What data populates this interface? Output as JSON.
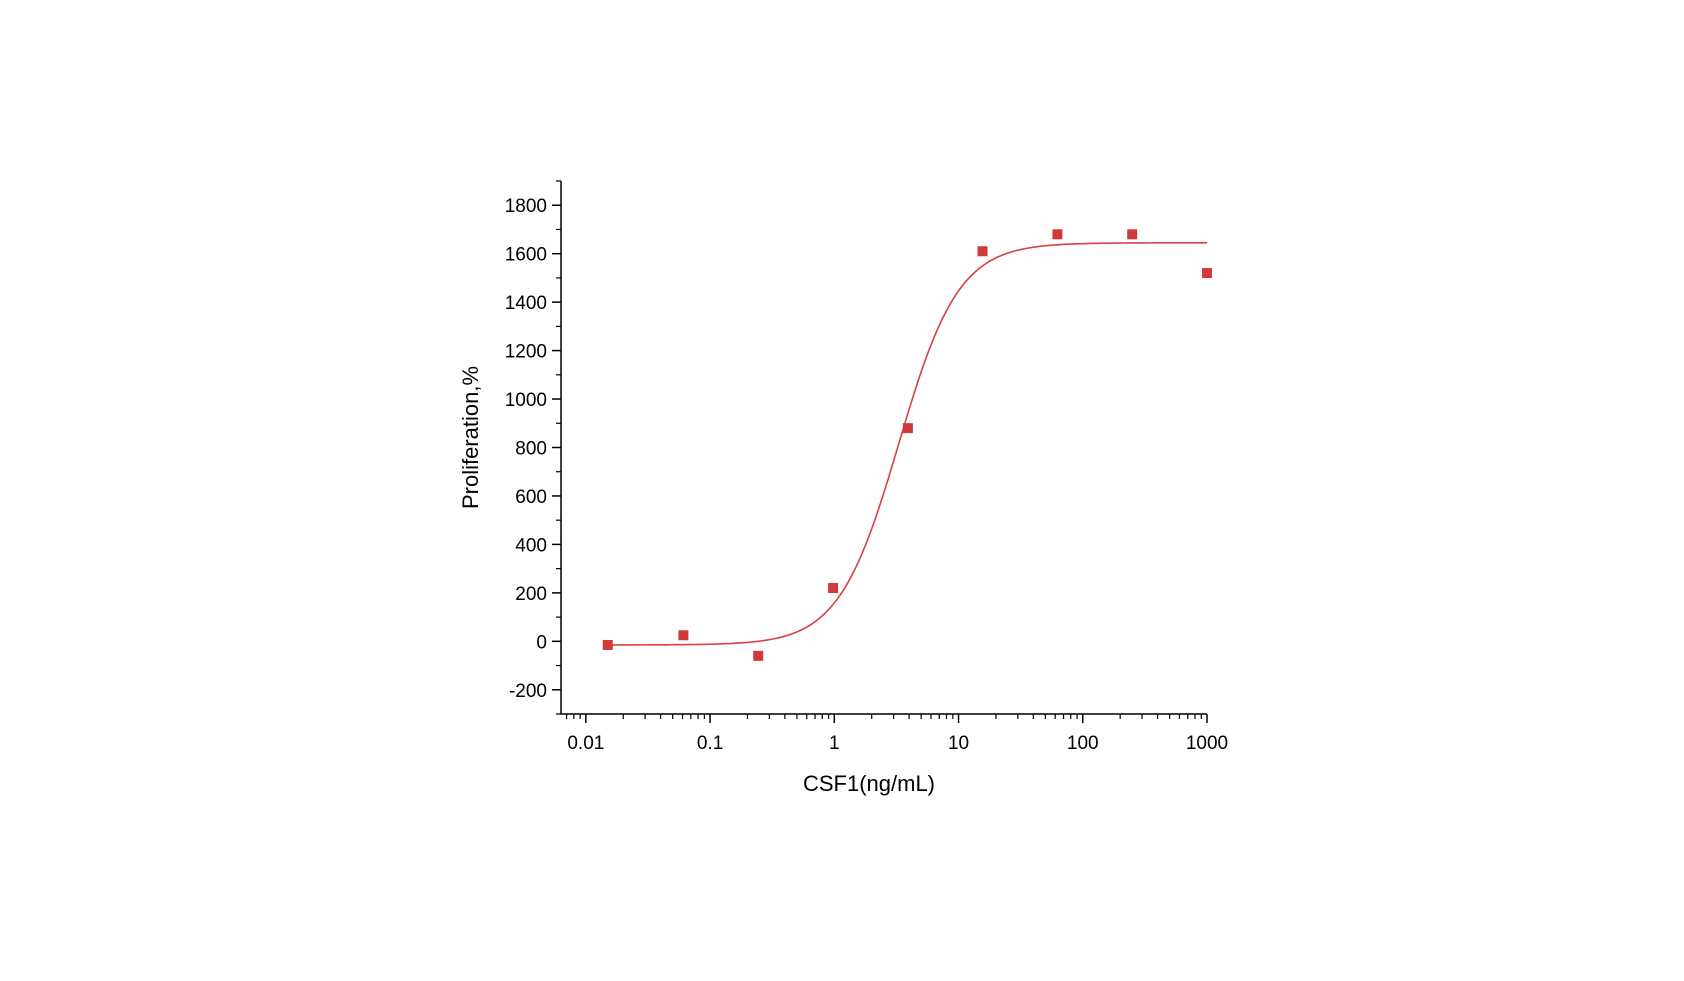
{
  "chart_data": {
    "type": "scatter",
    "title": "",
    "xlabel": "CSF1(ng/mL)",
    "ylabel": "Proliferation,%",
    "xscale": "log",
    "xlim": [
      0.01,
      1000
    ],
    "ylim": [
      -300,
      1900
    ],
    "xticks": [
      0.01,
      0.1,
      1,
      10,
      100,
      1000
    ],
    "xtick_labels": [
      "0.01",
      "0.1",
      "1",
      "10",
      "100",
      "1000"
    ],
    "yticks": [
      -200,
      0,
      200,
      400,
      600,
      800,
      1000,
      1200,
      1400,
      1600,
      1800
    ],
    "ytick_labels": [
      "-200",
      "0",
      "200",
      "400",
      "600",
      "800",
      "1000",
      "1200",
      "1400",
      "1600",
      "1800"
    ],
    "grid": false,
    "legend": "none",
    "marker_color": "#d03a3a",
    "fit_color": "#d94040",
    "points": [
      {
        "x": 0.015,
        "y": -15
      },
      {
        "x": 0.061,
        "y": 25
      },
      {
        "x": 0.244,
        "y": -60
      },
      {
        "x": 0.977,
        "y": 220
      },
      {
        "x": 3.91,
        "y": 880
      },
      {
        "x": 15.6,
        "y": 1610
      },
      {
        "x": 62.5,
        "y": 1680
      },
      {
        "x": 250,
        "y": 1680
      },
      {
        "x": 1000,
        "y": 1520
      }
    ],
    "fit": {
      "model": "4PL",
      "bottom": -15,
      "top": 1645,
      "ec50": 3.3,
      "hill": 1.8,
      "x_range": [
        0.015,
        1000
      ]
    }
  }
}
